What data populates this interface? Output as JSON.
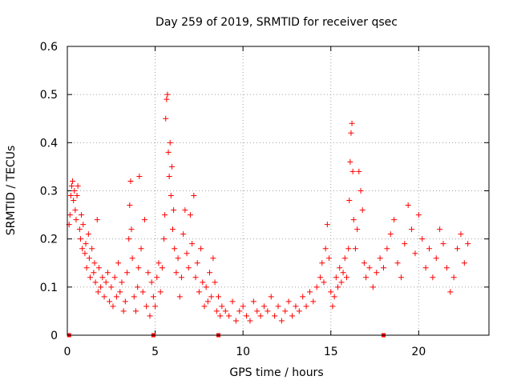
{
  "chart_data": {
    "type": "scatter",
    "title": "Day 259 of 2019, SRMTID for receiver qsec",
    "xlabel": "GPS time / hours",
    "ylabel": "SRMTID / TECUs",
    "xlim": [
      0,
      24
    ],
    "ylim": [
      0,
      0.6
    ],
    "xticks": [
      0,
      5,
      10,
      15,
      20
    ],
    "xtick_labels": [
      "0",
      "5",
      "10",
      "15",
      "20"
    ],
    "yticks": [
      0,
      0.1,
      0.2,
      0.3,
      0.4,
      0.5,
      0.6
    ],
    "ytick_labels": [
      "0",
      "0.1",
      "0.2",
      "0.3",
      "0.4",
      "0.5",
      "0.6"
    ],
    "grid": true,
    "marker": "+",
    "color": "#ff0000",
    "series": [
      {
        "name": "SRMTID",
        "points": [
          [
            0.1,
            0.23
          ],
          [
            0.15,
            0.25
          ],
          [
            0.2,
            0.29
          ],
          [
            0.25,
            0.31
          ],
          [
            0.3,
            0.32
          ],
          [
            0.35,
            0.28
          ],
          [
            0.4,
            0.3
          ],
          [
            0.45,
            0.26
          ],
          [
            0.5,
            0.24
          ],
          [
            0.55,
            0.29
          ],
          [
            0.6,
            0.31
          ],
          [
            0.7,
            0.22
          ],
          [
            0.75,
            0.2
          ],
          [
            0.8,
            0.25
          ],
          [
            0.85,
            0.18
          ],
          [
            0.9,
            0.23
          ],
          [
            1.0,
            0.17
          ],
          [
            1.05,
            0.19
          ],
          [
            1.1,
            0.14
          ],
          [
            1.2,
            0.21
          ],
          [
            1.25,
            0.16
          ],
          [
            1.3,
            0.12
          ],
          [
            1.4,
            0.18
          ],
          [
            1.5,
            0.13
          ],
          [
            1.55,
            0.15
          ],
          [
            1.6,
            0.11
          ],
          [
            1.7,
            0.24
          ],
          [
            1.75,
            0.09
          ],
          [
            1.8,
            0.14
          ],
          [
            1.9,
            0.1
          ],
          [
            2.0,
            0.12
          ],
          [
            2.1,
            0.08
          ],
          [
            2.2,
            0.11
          ],
          [
            2.3,
            0.13
          ],
          [
            2.4,
            0.07
          ],
          [
            2.5,
            0.1
          ],
          [
            2.6,
            0.06
          ],
          [
            2.7,
            0.12
          ],
          [
            2.8,
            0.08
          ],
          [
            2.9,
            0.15
          ],
          [
            3.0,
            0.09
          ],
          [
            3.1,
            0.11
          ],
          [
            3.2,
            0.05
          ],
          [
            3.3,
            0.07
          ],
          [
            3.4,
            0.13
          ],
          [
            3.5,
            0.2
          ],
          [
            3.55,
            0.27
          ],
          [
            3.6,
            0.32
          ],
          [
            3.65,
            0.22
          ],
          [
            3.7,
            0.16
          ],
          [
            3.8,
            0.08
          ],
          [
            3.9,
            0.05
          ],
          [
            4.0,
            0.1
          ],
          [
            4.05,
            0.14
          ],
          [
            4.1,
            0.33
          ],
          [
            4.2,
            0.18
          ],
          [
            4.3,
            0.09
          ],
          [
            4.4,
            0.24
          ],
          [
            4.5,
            0.06
          ],
          [
            4.6,
            0.13
          ],
          [
            4.7,
            0.04
          ],
          [
            4.8,
            0.11
          ],
          [
            4.9,
            0.08
          ],
          [
            5.0,
            0.06
          ],
          [
            5.1,
            0.12
          ],
          [
            5.2,
            0.15
          ],
          [
            5.3,
            0.09
          ],
          [
            5.4,
            0.14
          ],
          [
            5.5,
            0.2
          ],
          [
            5.55,
            0.25
          ],
          [
            5.6,
            0.45
          ],
          [
            5.65,
            0.49
          ],
          [
            5.7,
            0.5
          ],
          [
            5.75,
            0.38
          ],
          [
            5.8,
            0.33
          ],
          [
            5.85,
            0.4
          ],
          [
            5.9,
            0.29
          ],
          [
            5.95,
            0.35
          ],
          [
            6.0,
            0.22
          ],
          [
            6.05,
            0.26
          ],
          [
            6.1,
            0.18
          ],
          [
            6.2,
            0.13
          ],
          [
            6.3,
            0.16
          ],
          [
            6.4,
            0.08
          ],
          [
            6.5,
            0.12
          ],
          [
            6.6,
            0.21
          ],
          [
            6.7,
            0.26
          ],
          [
            6.8,
            0.17
          ],
          [
            6.9,
            0.14
          ],
          [
            7.0,
            0.25
          ],
          [
            7.1,
            0.19
          ],
          [
            7.2,
            0.29
          ],
          [
            7.3,
            0.12
          ],
          [
            7.4,
            0.15
          ],
          [
            7.5,
            0.09
          ],
          [
            7.6,
            0.18
          ],
          [
            7.7,
            0.11
          ],
          [
            7.8,
            0.06
          ],
          [
            7.9,
            0.1
          ],
          [
            8.0,
            0.07
          ],
          [
            8.1,
            0.13
          ],
          [
            8.2,
            0.08
          ],
          [
            8.3,
            0.16
          ],
          [
            8.4,
            0.11
          ],
          [
            8.5,
            0.05
          ],
          [
            8.6,
            0.08
          ],
          [
            8.7,
            0.04
          ],
          [
            8.8,
            0.06
          ],
          [
            9.0,
            0.05
          ],
          [
            9.2,
            0.04
          ],
          [
            9.4,
            0.07
          ],
          [
            9.6,
            0.03
          ],
          [
            9.8,
            0.05
          ],
          [
            10.0,
            0.06
          ],
          [
            10.2,
            0.04
          ],
          [
            10.4,
            0.03
          ],
          [
            10.6,
            0.07
          ],
          [
            10.8,
            0.05
          ],
          [
            11.0,
            0.04
          ],
          [
            11.2,
            0.06
          ],
          [
            11.4,
            0.05
          ],
          [
            11.6,
            0.08
          ],
          [
            11.8,
            0.04
          ],
          [
            12.0,
            0.06
          ],
          [
            12.2,
            0.03
          ],
          [
            12.4,
            0.05
          ],
          [
            12.6,
            0.07
          ],
          [
            12.8,
            0.04
          ],
          [
            13.0,
            0.06
          ],
          [
            13.2,
            0.05
          ],
          [
            13.4,
            0.08
          ],
          [
            13.6,
            0.06
          ],
          [
            13.8,
            0.09
          ],
          [
            14.0,
            0.07
          ],
          [
            14.2,
            0.1
          ],
          [
            14.4,
            0.12
          ],
          [
            14.5,
            0.15
          ],
          [
            14.6,
            0.11
          ],
          [
            14.7,
            0.18
          ],
          [
            14.8,
            0.23
          ],
          [
            14.9,
            0.16
          ],
          [
            15.0,
            0.09
          ],
          [
            15.1,
            0.06
          ],
          [
            15.2,
            0.08
          ],
          [
            15.3,
            0.12
          ],
          [
            15.4,
            0.1
          ],
          [
            15.5,
            0.14
          ],
          [
            15.6,
            0.11
          ],
          [
            15.7,
            0.13
          ],
          [
            15.8,
            0.16
          ],
          [
            15.9,
            0.12
          ],
          [
            16.0,
            0.18
          ],
          [
            16.05,
            0.28
          ],
          [
            16.1,
            0.36
          ],
          [
            16.15,
            0.42
          ],
          [
            16.2,
            0.44
          ],
          [
            16.25,
            0.34
          ],
          [
            16.3,
            0.24
          ],
          [
            16.4,
            0.18
          ],
          [
            16.5,
            0.22
          ],
          [
            16.6,
            0.34
          ],
          [
            16.7,
            0.3
          ],
          [
            16.8,
            0.26
          ],
          [
            16.9,
            0.15
          ],
          [
            17.0,
            0.12
          ],
          [
            17.2,
            0.14
          ],
          [
            17.4,
            0.1
          ],
          [
            17.6,
            0.13
          ],
          [
            17.8,
            0.16
          ],
          [
            18.0,
            0.14
          ],
          [
            18.2,
            0.18
          ],
          [
            18.4,
            0.21
          ],
          [
            18.6,
            0.24
          ],
          [
            18.8,
            0.15
          ],
          [
            19.0,
            0.12
          ],
          [
            19.2,
            0.19
          ],
          [
            19.4,
            0.27
          ],
          [
            19.6,
            0.22
          ],
          [
            19.8,
            0.17
          ],
          [
            20.0,
            0.25
          ],
          [
            20.2,
            0.2
          ],
          [
            20.4,
            0.14
          ],
          [
            20.6,
            0.18
          ],
          [
            20.8,
            0.12
          ],
          [
            21.0,
            0.16
          ],
          [
            21.2,
            0.22
          ],
          [
            21.4,
            0.19
          ],
          [
            21.6,
            0.14
          ],
          [
            21.8,
            0.09
          ],
          [
            22.0,
            0.12
          ],
          [
            22.2,
            0.18
          ],
          [
            22.4,
            0.21
          ],
          [
            22.6,
            0.15
          ],
          [
            22.8,
            0.19
          ]
        ]
      }
    ],
    "baseline_markers_x": [
      0.1,
      4.9,
      8.6,
      18.0
    ]
  }
}
